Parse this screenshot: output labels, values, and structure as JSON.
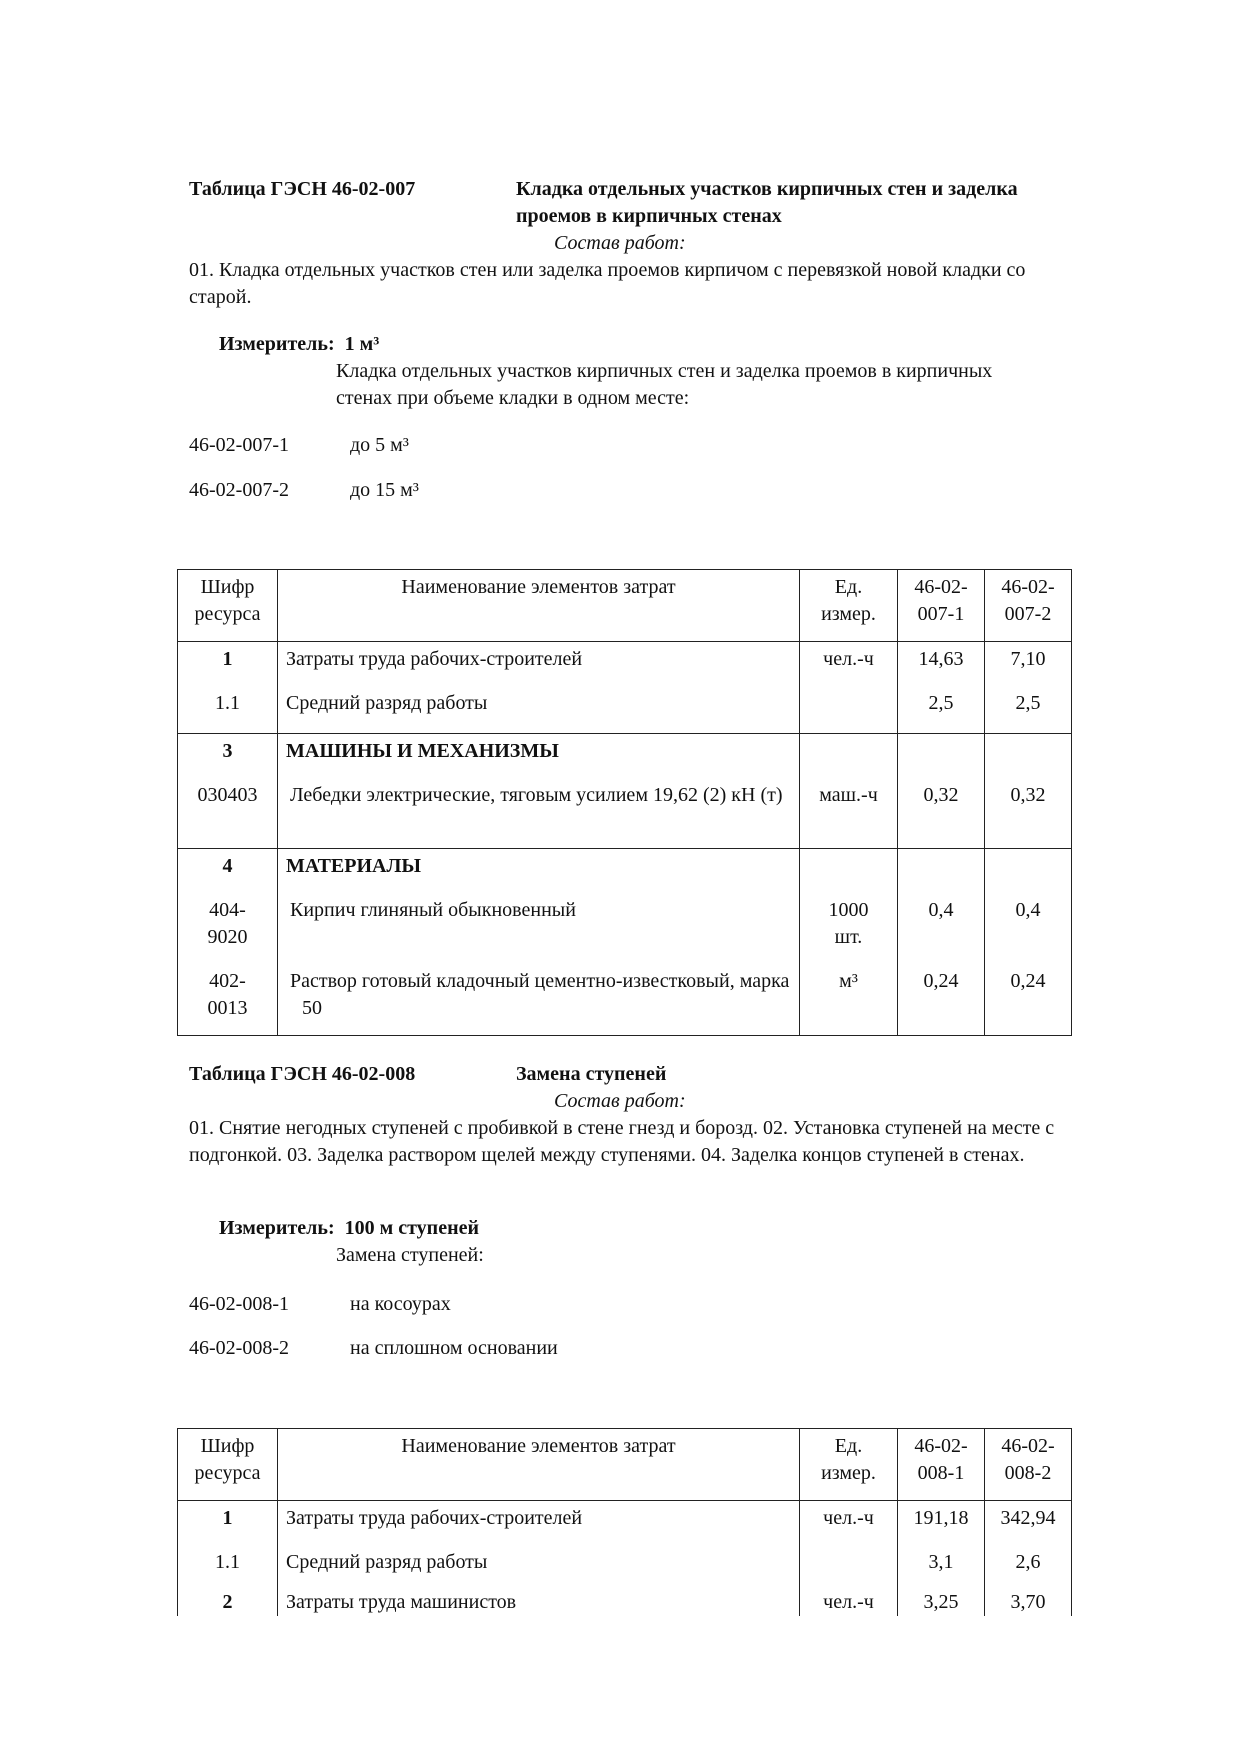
{
  "section1": {
    "table_label": "Таблица ГЭСН 46-02-007",
    "title_line1": "Кладка отдельных участков кирпичных стен и заделка",
    "title_line2": "проемов в кирпичных стенах",
    "work_heading": "Состав работ:",
    "work_text": "01. Кладка отдельных участков стен или заделка проемов кирпичом с перевязкой новой кладки со старой.",
    "meter_label": "Измеритель:",
    "meter_value": "1 м³",
    "description": "Кладка отдельных участков кирпичных стен и заделка проемов в кирпичных стенах при объеме кладки в одном месте:",
    "variants": [
      {
        "code": "46-02-007-1",
        "text": "до 5 м³"
      },
      {
        "code": "46-02-007-2",
        "text": "до 15 м³"
      }
    ],
    "table": {
      "headers": [
        "Шифр ресурса",
        "Наименование элементов затрат",
        "Ед. измер.",
        "46-02-007-1",
        "46-02-007-2"
      ],
      "rows": [
        {
          "code": "1",
          "name": "Затраты труда рабочих-строителей",
          "unit": "чел.-ч",
          "v1": "14,63",
          "v2": "7,10"
        },
        {
          "code": "1.1",
          "name": "Средний разряд работы",
          "unit": "",
          "v1": "2,5",
          "v2": "2,5"
        },
        {
          "code": "3",
          "name": "МАШИНЫ И МЕХАНИЗМЫ",
          "unit": "",
          "v1": "",
          "v2": ""
        },
        {
          "code": "030403",
          "name": "Лебедки электрические, тяговым усилием 19,62 (2) кН (т)",
          "unit": "маш.-ч",
          "v1": "0,32",
          "v2": "0,32"
        },
        {
          "code": "4",
          "name": "МАТЕРИАЛЫ",
          "unit": "",
          "v1": "",
          "v2": ""
        },
        {
          "code": "404-9020",
          "name": "Кирпич глиняный обыкновенный",
          "unit": "1000 шт.",
          "v1": "0,4",
          "v2": "0,4"
        },
        {
          "code": "402-0013",
          "name": "Раствор готовый кладочный цементно-известковый, марка 50",
          "unit": "м³",
          "v1": "0,24",
          "v2": "0,24"
        }
      ]
    }
  },
  "section2": {
    "table_label": "Таблица ГЭСН 46-02-008",
    "title_line1": "Замена ступеней",
    "work_heading": "Состав работ:",
    "work_text": "01. Снятие негодных ступеней с пробивкой в стене гнезд и борозд. 02. Установка ступеней на месте с подгонкой. 03. Заделка раствором щелей между ступенями. 04. Заделка концов ступеней в стенах.",
    "meter_label": "Измеритель:",
    "meter_value": "100 м ступеней",
    "description": "Замена ступеней:",
    "variants": [
      {
        "code": "46-02-008-1",
        "text": "на косоурах"
      },
      {
        "code": "46-02-008-2",
        "text": "на сплошном основании"
      }
    ],
    "table": {
      "headers": [
        "Шифр ресурса",
        "Наименование элементов затрат",
        "Ед. измер.",
        "46-02-008-1",
        "46-02-008-2"
      ],
      "rows": [
        {
          "code": "1",
          "name": "Затраты труда рабочих-строителей",
          "unit": "чел.-ч",
          "v1": "191,18",
          "v2": "342,94"
        },
        {
          "code": "1.1",
          "name": "Средний разряд работы",
          "unit": "",
          "v1": "3,1",
          "v2": "2,6"
        },
        {
          "code": "2",
          "name": "Затраты труда машинистов",
          "unit": "чел.-ч",
          "v1": "3,25",
          "v2": "3,70"
        }
      ]
    }
  }
}
